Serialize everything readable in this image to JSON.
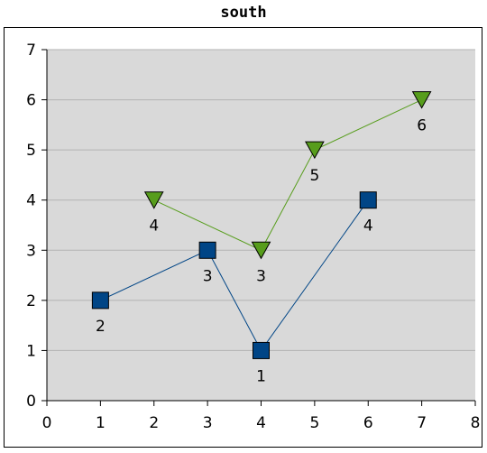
{
  "chart_data": {
    "type": "line",
    "title": "south",
    "xlabel": "",
    "ylabel": "",
    "xlim": [
      0,
      8
    ],
    "ylim": [
      0,
      7
    ],
    "xticks": [
      "0",
      "1",
      "2",
      "3",
      "4",
      "5",
      "6",
      "7",
      "8"
    ],
    "yticks": [
      "0",
      "1",
      "2",
      "3",
      "4",
      "5",
      "6",
      "7"
    ],
    "grid": true,
    "plot_background": "#d9d9d9",
    "series": [
      {
        "marker": "square",
        "color": "#004586",
        "points": [
          {
            "x": 1,
            "y": 2,
            "label": "2"
          },
          {
            "x": 3,
            "y": 3,
            "label": "3"
          },
          {
            "x": 4,
            "y": 1,
            "label": "1"
          },
          {
            "x": 6,
            "y": 4,
            "label": "4"
          }
        ]
      },
      {
        "marker": "triangle-down",
        "color": "#579d1c",
        "points": [
          {
            "x": 2,
            "y": 4,
            "label": "4"
          },
          {
            "x": 4,
            "y": 3,
            "label": "3"
          },
          {
            "x": 5,
            "y": 5,
            "label": "5"
          },
          {
            "x": 7,
            "y": 6,
            "label": "6"
          }
        ]
      }
    ]
  }
}
